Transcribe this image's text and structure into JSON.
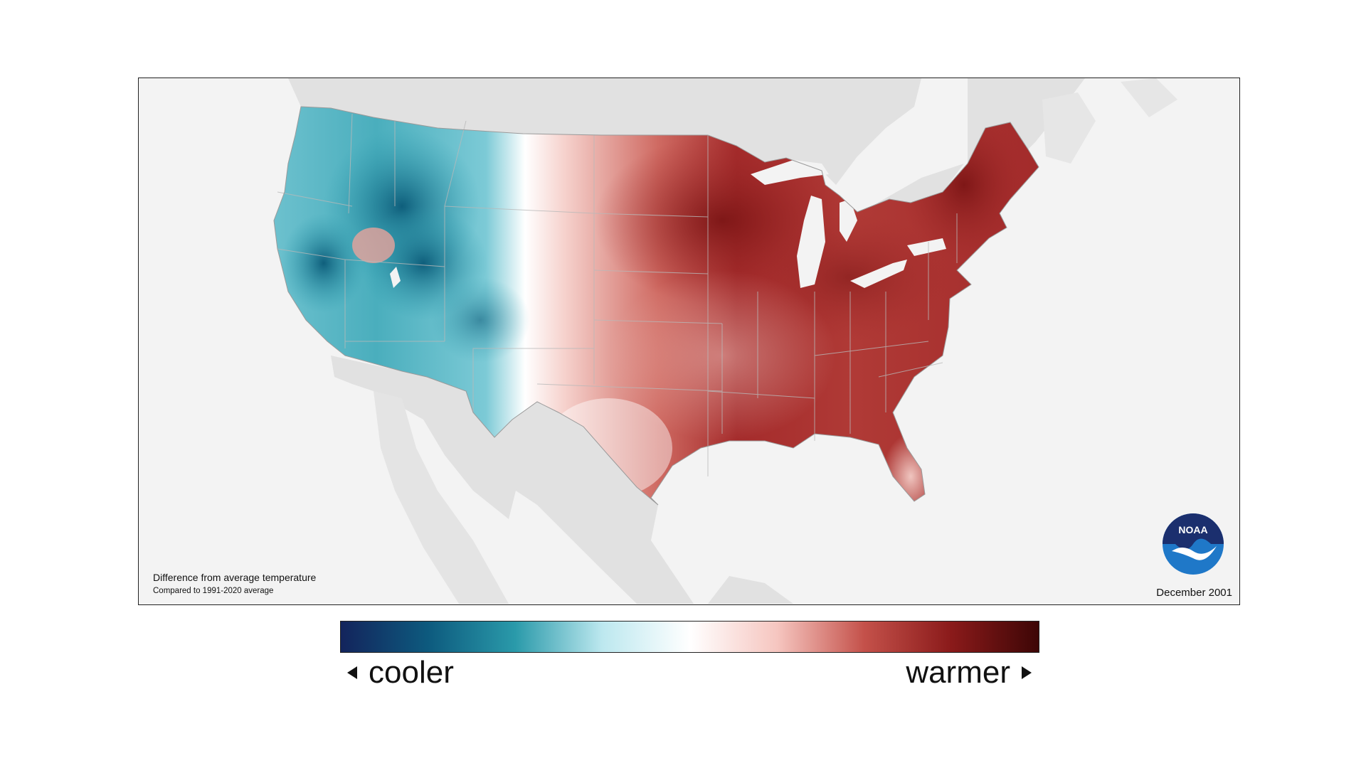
{
  "map": {
    "caption_title": "Difference from average temperature",
    "caption_subtitle": "Compared to 1991-2020 average",
    "date": "December 2001",
    "logo_text": "NOAA"
  },
  "legend": {
    "left_label": "cooler",
    "right_label": "warmer",
    "gradient_colors": [
      "#13245c",
      "#0d5a7e",
      "#2a9aaa",
      "#bde8ef",
      "#ffffff",
      "#f6c6c0",
      "#c4514a",
      "#8a1a1a",
      "#3d0606"
    ]
  },
  "colors": {
    "water": "#f3f3f3",
    "land_outside": "#e0e0e0",
    "cool_strong": "#0c5d7c",
    "cool_mid": "#3aa5b5",
    "cool_light": "#bfe8ef",
    "neutral": "#ffffff",
    "warm_light": "#f2b5ad",
    "warm_mid": "#c9544c",
    "warm_strong": "#8b1c1c"
  }
}
